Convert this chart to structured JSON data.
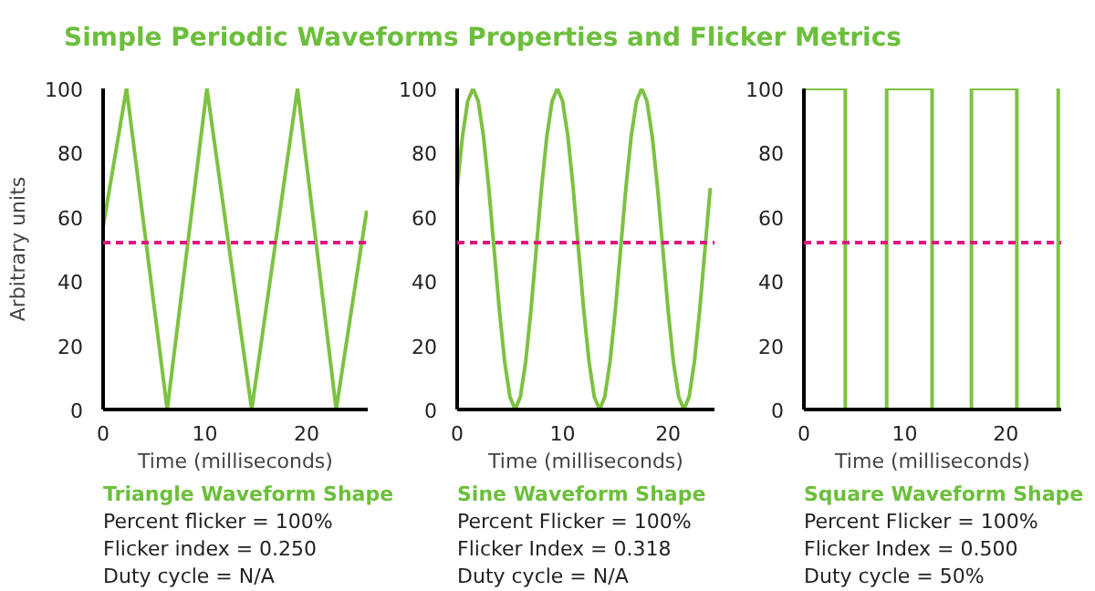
{
  "chart_data": [
    {
      "type": "line",
      "title": "Simple Periodic Waveforms Properties and Flicker Metrics",
      "subtitle": "Triangle Waveform Shape",
      "xlabel": "Time (milliseconds)",
      "ylabel": "Arbitrary units",
      "x": [
        0,
        2.3,
        6.3,
        10.2,
        14.6,
        19.1,
        22.9,
        25.9
      ],
      "series": [
        {
          "color": "#7dc242",
          "values": [
            57,
            100,
            0,
            100,
            0,
            100,
            0,
            62
          ]
        }
      ],
      "xlim": [
        0,
        26
      ],
      "xticks": [
        0,
        10,
        20
      ],
      "ylim": [
        0,
        100
      ],
      "yticks": [
        0,
        20,
        40,
        60,
        80,
        100
      ],
      "ref_lines": [
        {
          "axis": "y",
          "value": 52,
          "color": "#e0157f",
          "line_style": "dashed"
        }
      ],
      "annotations": [
        "Percent flicker = 100%",
        "Flicker index = 0.250",
        "Duty cycle = N/A"
      ]
    },
    {
      "type": "line",
      "subtitle": "Sine Waveform Shape",
      "xlabel": "Time (milliseconds)",
      "x": [
        0,
        0.5,
        1,
        1.5,
        2,
        2.5,
        3,
        3.5,
        4,
        4.5,
        5,
        5.5,
        6,
        6.5,
        7,
        7.5,
        8,
        8.5,
        9,
        9.5,
        10,
        10.5,
        11,
        11.5,
        12,
        12.5,
        13,
        13.5,
        14,
        14.5,
        15,
        15.5,
        16,
        16.5,
        17,
        17.5,
        18,
        18.5,
        19,
        19.5,
        20,
        20.5,
        21,
        21.5,
        22,
        22.5,
        23,
        23.5,
        24
      ],
      "series": [
        {
          "color": "#7dc242",
          "values": [
            69,
            85,
            96,
            100,
            96,
            85,
            69,
            50,
            31,
            15,
            4,
            0,
            4,
            15,
            31,
            50,
            69,
            85,
            96,
            100,
            96,
            85,
            69,
            50,
            31,
            15,
            4,
            0,
            4,
            15,
            31,
            50,
            69,
            85,
            96,
            100,
            96,
            85,
            69,
            50,
            31,
            15,
            4,
            0,
            4,
            15,
            31,
            50,
            69
          ]
        }
      ],
      "xlim": [
        0,
        24.4
      ],
      "xticks": [
        0,
        10,
        20
      ],
      "ylim": [
        0,
        100
      ],
      "yticks": [
        0,
        20,
        40,
        60,
        80,
        100
      ],
      "ref_lines": [
        {
          "axis": "y",
          "value": 52,
          "color": "#e0157f",
          "line_style": "dashed"
        }
      ],
      "annotations": [
        "Percent Flicker = 100%",
        "Flicker Index = 0.318",
        "Duty cycle = N/A"
      ]
    },
    {
      "type": "step",
      "subtitle": "Square Waveform Shape",
      "xlabel": "Time (milliseconds)",
      "x": [
        0,
        4.1,
        8.2,
        12.7,
        16.6,
        21.1,
        25.2
      ],
      "series": [
        {
          "color": "#7dc242",
          "values": [
            100,
            0,
            100,
            0,
            100,
            0,
            100
          ]
        }
      ],
      "xlim": [
        0,
        25.5
      ],
      "xticks": [
        0,
        10,
        20
      ],
      "ylim": [
        0,
        100
      ],
      "yticks": [
        0,
        20,
        40,
        60,
        80,
        100
      ],
      "ref_lines": [
        {
          "axis": "y",
          "value": 52,
          "color": "#e0157f",
          "line_style": "dashed"
        }
      ],
      "annotations": [
        "Percent Flicker = 100%",
        "Flicker Index = 0.500",
        "Duty cycle = 50%"
      ]
    }
  ]
}
